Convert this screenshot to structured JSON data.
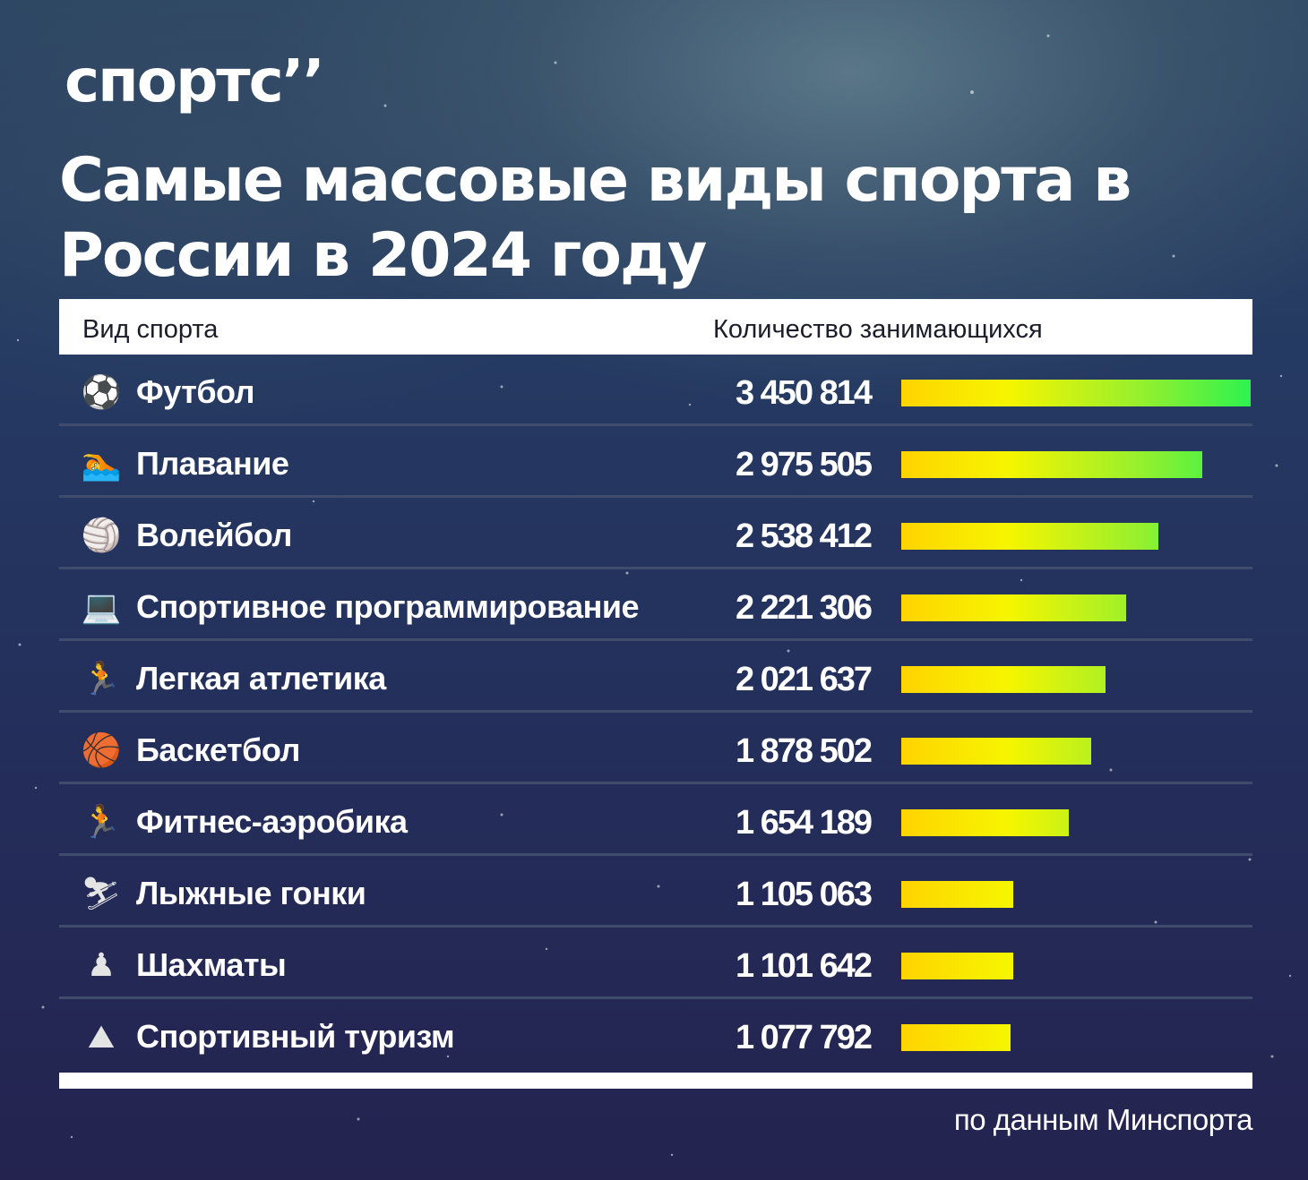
{
  "brand": {
    "logo": "спортс’’"
  },
  "chart_data": {
    "type": "bar",
    "title": "Самые массовые виды спорта в России в 2024 году",
    "column_headers": {
      "sport": "Вид спорта",
      "count": "Количество занимающихся"
    },
    "categories": [
      "Футбол",
      "Плавание",
      "Волейбол",
      "Спортивное программирование",
      "Легкая атлетика",
      "Баскетбол",
      "Фитнес-аэробика",
      "Лыжные гонки",
      "Шахматы",
      "Спортивный туризм"
    ],
    "values": [
      3450814,
      2975505,
      2538412,
      2221306,
      2021637,
      1878502,
      1654189,
      1105063,
      1101642,
      1077792
    ],
    "value_labels": [
      "3 450 814",
      "2 975 505",
      "2 538 412",
      "2 221 306",
      "2 021 637",
      "1 878 502",
      "1 654 189",
      "1 105 063",
      "1 101 642",
      "1 077 792"
    ],
    "icons": [
      "soccer-ball-icon",
      "swimmer-icon",
      "volleyball-icon",
      "laptop-icon",
      "runner-icon",
      "basketball-icon",
      "runner-icon",
      "skier-icon",
      "chess-pawn-icon",
      "mountain-icon"
    ],
    "bar_gradient": [
      "#ffd400",
      "#f6f500",
      "#9bf02c",
      "#2ef24f"
    ],
    "source": "по данным Минспорта"
  }
}
